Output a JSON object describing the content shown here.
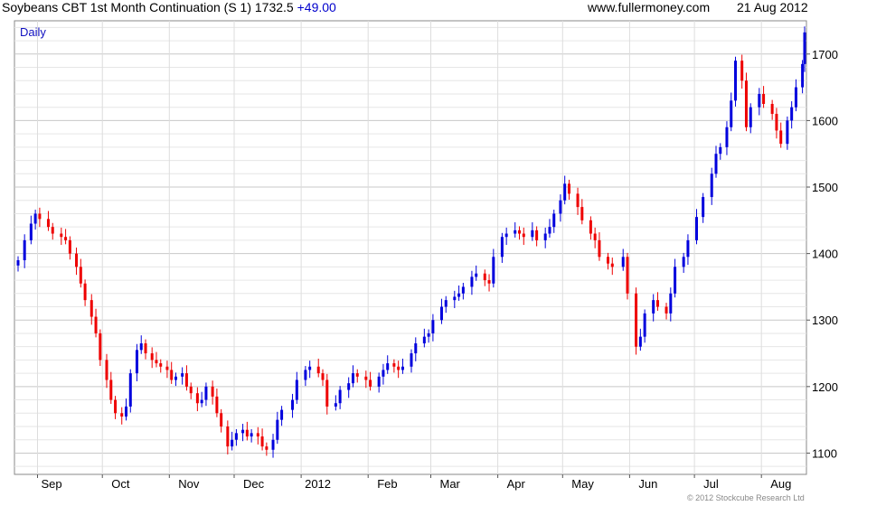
{
  "header": {
    "title": "Soybeans CBT 1st Month Continuation (S 1) 1732.5",
    "change": "+49.00",
    "site": "www.fullermoney.com",
    "date": "21 Aug 2012"
  },
  "period_label": "Daily",
  "copyright": "© 2012 Stockcube Research Ltd",
  "colors": {
    "up": "#0000dd",
    "down": "#ee0000",
    "grid": "#d8d8d8"
  },
  "chart_data": {
    "type": "candlestick",
    "title": "Soybeans CBT 1st Month Continuation (S 1) 1732.5 +49.00",
    "xlabel": "",
    "ylabel": "",
    "ylim": [
      1068,
      1750
    ],
    "y_ticks": [
      1100,
      1200,
      1300,
      1400,
      1500,
      1600,
      1700
    ],
    "x_ticks": [
      "Sep",
      "Oct",
      "Nov",
      "Dec",
      "2012",
      "Feb",
      "Mar",
      "Apr",
      "May",
      "Jun",
      "Jul",
      "Aug"
    ],
    "x_tick_dates": [
      "2011-09-01",
      "2011-10-01",
      "2011-11-01",
      "2011-12-01",
      "2012-01-01",
      "2012-02-01",
      "2012-03-01",
      "2012-04-01",
      "2012-05-01",
      "2012-06-01",
      "2012-07-01",
      "2012-08-01"
    ],
    "x_range": [
      "2011-08-23",
      "2012-08-21"
    ],
    "grid": true,
    "closes": [
      [
        "2011-08-23",
        1390
      ],
      [
        "2011-08-26",
        1420
      ],
      [
        "2011-08-29",
        1445
      ],
      [
        "2011-08-31",
        1460
      ],
      [
        "2011-09-02",
        1452
      ],
      [
        "2011-09-06",
        1440
      ],
      [
        "2011-09-08",
        1430
      ],
      [
        "2011-09-12",
        1425
      ],
      [
        "2011-09-14",
        1420
      ],
      [
        "2011-09-16",
        1400
      ],
      [
        "2011-09-19",
        1380
      ],
      [
        "2011-09-21",
        1355
      ],
      [
        "2011-09-23",
        1330
      ],
      [
        "2011-09-26",
        1305
      ],
      [
        "2011-09-28",
        1280
      ],
      [
        "2011-09-30",
        1240
      ],
      [
        "2011-10-03",
        1210
      ],
      [
        "2011-10-05",
        1180
      ],
      [
        "2011-10-07",
        1160
      ],
      [
        "2011-10-10",
        1155
      ],
      [
        "2011-10-12",
        1170
      ],
      [
        "2011-10-14",
        1220
      ],
      [
        "2011-10-17",
        1255
      ],
      [
        "2011-10-19",
        1265
      ],
      [
        "2011-10-21",
        1250
      ],
      [
        "2011-10-24",
        1240
      ],
      [
        "2011-10-26",
        1235
      ],
      [
        "2011-10-28",
        1230
      ],
      [
        "2011-10-31",
        1225
      ],
      [
        "2011-11-02",
        1210
      ],
      [
        "2011-11-04",
        1215
      ],
      [
        "2011-11-07",
        1220
      ],
      [
        "2011-11-09",
        1200
      ],
      [
        "2011-11-11",
        1190
      ],
      [
        "2011-11-14",
        1175
      ],
      [
        "2011-11-16",
        1180
      ],
      [
        "2011-11-18",
        1200
      ],
      [
        "2011-11-21",
        1185
      ],
      [
        "2011-11-23",
        1160
      ],
      [
        "2011-11-25",
        1140
      ],
      [
        "2011-11-28",
        1110
      ],
      [
        "2011-11-30",
        1120
      ],
      [
        "2011-12-02",
        1130
      ],
      [
        "2011-12-05",
        1135
      ],
      [
        "2011-12-07",
        1125
      ],
      [
        "2011-12-09",
        1130
      ],
      [
        "2011-12-12",
        1125
      ],
      [
        "2011-12-14",
        1110
      ],
      [
        "2011-12-16",
        1105
      ],
      [
        "2011-12-19",
        1120
      ],
      [
        "2011-12-21",
        1150
      ],
      [
        "2011-12-23",
        1165
      ],
      [
        "2011-12-28",
        1180
      ],
      [
        "2011-12-30",
        1210
      ],
      [
        "2012-01-03",
        1225
      ],
      [
        "2012-01-05",
        1230
      ],
      [
        "2012-01-09",
        1220
      ],
      [
        "2012-01-11",
        1210
      ],
      [
        "2012-01-13",
        1170
      ],
      [
        "2012-01-17",
        1175
      ],
      [
        "2012-01-19",
        1195
      ],
      [
        "2012-01-23",
        1205
      ],
      [
        "2012-01-25",
        1220
      ],
      [
        "2012-01-27",
        1215
      ],
      [
        "2012-01-31",
        1210
      ],
      [
        "2012-02-02",
        1200
      ],
      [
        "2012-02-06",
        1215
      ],
      [
        "2012-02-08",
        1225
      ],
      [
        "2012-02-10",
        1235
      ],
      [
        "2012-02-13",
        1230
      ],
      [
        "2012-02-15",
        1225
      ],
      [
        "2012-02-17",
        1230
      ],
      [
        "2012-02-21",
        1250
      ],
      [
        "2012-02-23",
        1265
      ],
      [
        "2012-02-27",
        1275
      ],
      [
        "2012-02-29",
        1280
      ],
      [
        "2012-03-02",
        1300
      ],
      [
        "2012-03-06",
        1320
      ],
      [
        "2012-03-08",
        1330
      ],
      [
        "2012-03-12",
        1335
      ],
      [
        "2012-03-14",
        1340
      ],
      [
        "2012-03-16",
        1350
      ],
      [
        "2012-03-20",
        1365
      ],
      [
        "2012-03-22",
        1370
      ],
      [
        "2012-03-26",
        1360
      ],
      [
        "2012-03-28",
        1355
      ],
      [
        "2012-03-30",
        1395
      ],
      [
        "2012-04-03",
        1425
      ],
      [
        "2012-04-05",
        1430
      ],
      [
        "2012-04-09",
        1435
      ],
      [
        "2012-04-11",
        1430
      ],
      [
        "2012-04-13",
        1425
      ],
      [
        "2012-04-17",
        1435
      ],
      [
        "2012-04-19",
        1420
      ],
      [
        "2012-04-23",
        1430
      ],
      [
        "2012-04-25",
        1440
      ],
      [
        "2012-04-27",
        1460
      ],
      [
        "2012-04-30",
        1480
      ],
      [
        "2012-05-02",
        1505
      ],
      [
        "2012-05-04",
        1490
      ],
      [
        "2012-05-08",
        1470
      ],
      [
        "2012-05-10",
        1450
      ],
      [
        "2012-05-14",
        1430
      ],
      [
        "2012-05-16",
        1420
      ],
      [
        "2012-05-18",
        1395
      ],
      [
        "2012-05-22",
        1385
      ],
      [
        "2012-05-24",
        1380
      ],
      [
        "2012-05-29",
        1395
      ],
      [
        "2012-05-31",
        1340
      ],
      [
        "2012-06-04",
        1260
      ],
      [
        "2012-06-06",
        1275
      ],
      [
        "2012-06-08",
        1310
      ],
      [
        "2012-06-12",
        1330
      ],
      [
        "2012-06-14",
        1320
      ],
      [
        "2012-06-18",
        1310
      ],
      [
        "2012-06-20",
        1340
      ],
      [
        "2012-06-22",
        1380
      ],
      [
        "2012-06-26",
        1395
      ],
      [
        "2012-06-28",
        1420
      ],
      [
        "2012-07-02",
        1455
      ],
      [
        "2012-07-05",
        1485
      ],
      [
        "2012-07-09",
        1520
      ],
      [
        "2012-07-11",
        1550
      ],
      [
        "2012-07-13",
        1560
      ],
      [
        "2012-07-16",
        1590
      ],
      [
        "2012-07-18",
        1630
      ],
      [
        "2012-07-20",
        1690
      ],
      [
        "2012-07-23",
        1660
      ],
      [
        "2012-07-25",
        1590
      ],
      [
        "2012-07-27",
        1620
      ],
      [
        "2012-07-31",
        1640
      ],
      [
        "2012-08-02",
        1625
      ],
      [
        "2012-08-06",
        1610
      ],
      [
        "2012-08-08",
        1585
      ],
      [
        "2012-08-10",
        1565
      ],
      [
        "2012-08-13",
        1600
      ],
      [
        "2012-08-15",
        1620
      ],
      [
        "2012-08-17",
        1650
      ],
      [
        "2012-08-20",
        1685
      ],
      [
        "2012-08-21",
        1732.5
      ]
    ]
  }
}
